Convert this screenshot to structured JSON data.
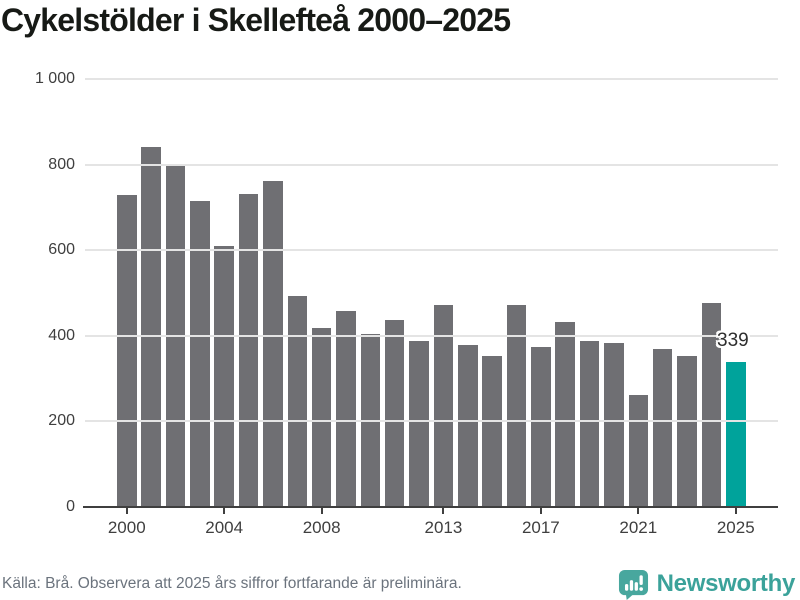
{
  "title": "Cykelstölder i Skellefteå 2000–2025",
  "chart_data": {
    "type": "bar",
    "title": "Cykelstölder i Skellefteå 2000–2025",
    "x": [
      2000,
      2001,
      2002,
      2003,
      2004,
      2005,
      2006,
      2007,
      2008,
      2009,
      2010,
      2011,
      2012,
      2013,
      2014,
      2015,
      2016,
      2017,
      2018,
      2019,
      2020,
      2021,
      2022,
      2023,
      2024,
      2025
    ],
    "values": [
      730,
      841,
      801,
      716,
      611,
      731,
      762,
      494,
      419,
      459,
      404,
      437,
      387,
      472,
      379,
      352,
      473,
      373,
      432,
      389,
      383,
      261,
      370,
      354,
      477,
      339
    ],
    "ylim": [
      0,
      1000
    ],
    "yticks": [
      {
        "value": 0,
        "label": "0"
      },
      {
        "value": 200,
        "label": "200"
      },
      {
        "value": 400,
        "label": "400"
      },
      {
        "value": 600,
        "label": "600"
      },
      {
        "value": 800,
        "label": "800"
      },
      {
        "value": 1000,
        "label": "1 000"
      }
    ],
    "xticks": [
      {
        "year": 2000,
        "label": "2000"
      },
      {
        "year": 2004,
        "label": "2004"
      },
      {
        "year": 2008,
        "label": "2008"
      },
      {
        "year": 2013,
        "label": "2013"
      },
      {
        "year": 2017,
        "label": "2017"
      },
      {
        "year": 2021,
        "label": "2021"
      },
      {
        "year": 2025,
        "label": "2025"
      }
    ],
    "highlight": {
      "year": 2025,
      "value_label": "339"
    },
    "grid": "horizontal",
    "legend": "none",
    "xlabel": "",
    "ylabel": "",
    "colors": {
      "bar": "#6f6f73",
      "highlight": "#00a39b",
      "grid": "#e4e4e4",
      "axis": "#3f3f3f",
      "label_text": "#3f3f3f"
    }
  },
  "footer": {
    "source": "Källa: Brå. Observera att 2025 års siffror fortfarande är preliminära.",
    "brand": "Newsworthy"
  },
  "icons": {
    "logo": "newsworthy-speech-bubble-bar-chart-icon"
  }
}
